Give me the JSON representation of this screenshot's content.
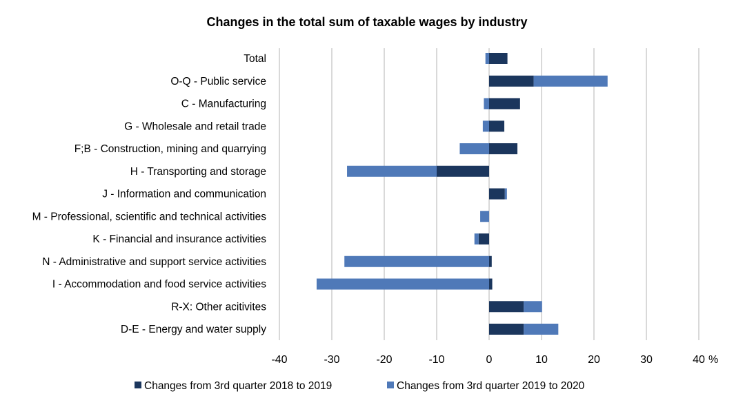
{
  "chart_data": {
    "type": "bar",
    "orientation": "horizontal",
    "stacked": true,
    "title": "Changes in the total sum of taxable wages by industry",
    "xlabel": "%",
    "ylabel": "",
    "xlim": [
      -40,
      40
    ],
    "xticks": [
      -40,
      -30,
      -20,
      -10,
      0,
      10,
      20,
      30,
      40
    ],
    "grid": true,
    "legend_position": "bottom",
    "categories": [
      "Total",
      "O-Q - Public service",
      "C - Manufacturing",
      "G - Wholesale and retail trade",
      "F;B - Construction, mining and quarrying",
      "H - Transporting and storage",
      "J - Information and communication",
      "M - Professional, scientific and technical activities",
      "K - Financial and insurance activities",
      "N - Administrative and support service activities",
      "I - Accommodation and food service activities",
      "R-X: Other acitivites",
      "D-E -  Energy and water supply"
    ],
    "series": [
      {
        "name": "Changes from 3rd quarter 2018 to 2019",
        "color": "#1b365d",
        "values": [
          3.5,
          8.5,
          5.9,
          2.9,
          5.4,
          -10.0,
          3.0,
          0.0,
          -2.0,
          0.5,
          0.6,
          6.6,
          6.6
        ]
      },
      {
        "name": "Changes from 3rd quarter 2019 to 2020",
        "color": "#4f79b8",
        "values": [
          -0.7,
          14.1,
          -1.0,
          -1.2,
          -5.6,
          -17.1,
          0.4,
          -1.7,
          -0.8,
          -27.6,
          -32.9,
          3.5,
          6.6
        ]
      }
    ]
  }
}
